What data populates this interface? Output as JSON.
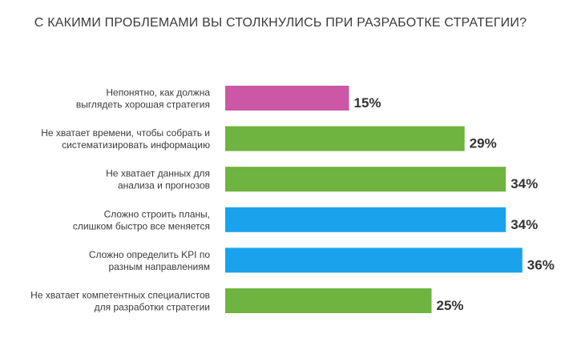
{
  "chart_data": {
    "type": "bar",
    "orientation": "horizontal",
    "title": "С КАКИМИ ПРОБЛЕМАМИ ВЫ СТОЛКНУЛИСЬ ПРИ РАЗРАБОТКЕ СТРАТЕГИИ?",
    "categories": [
      [
        "Непонятно, как должна",
        "выглядеть хорошая стратегия"
      ],
      [
        "Не хватает времени, чтобы собрать и",
        "систематизировать информацию"
      ],
      [
        "Не хватает данных для",
        "анализа и прогнозов"
      ],
      [
        "Сложно строить планы,",
        "слишком быстро все меняется"
      ],
      [
        "Сложно определить KPI по",
        "разным направлениям"
      ],
      [
        "Не хватает компетентных специалистов",
        "для разработки стратегии"
      ]
    ],
    "values": [
      15,
      29,
      34,
      34,
      36,
      25
    ],
    "value_labels": [
      "15%",
      "29%",
      "34%",
      "34%",
      "36%",
      "25%"
    ],
    "colors": [
      "#cc57a4",
      "#6fb340",
      "#6fb340",
      "#1aa3ec",
      "#1aa3ec",
      "#6fb340"
    ],
    "grid": false,
    "legend": "none"
  }
}
